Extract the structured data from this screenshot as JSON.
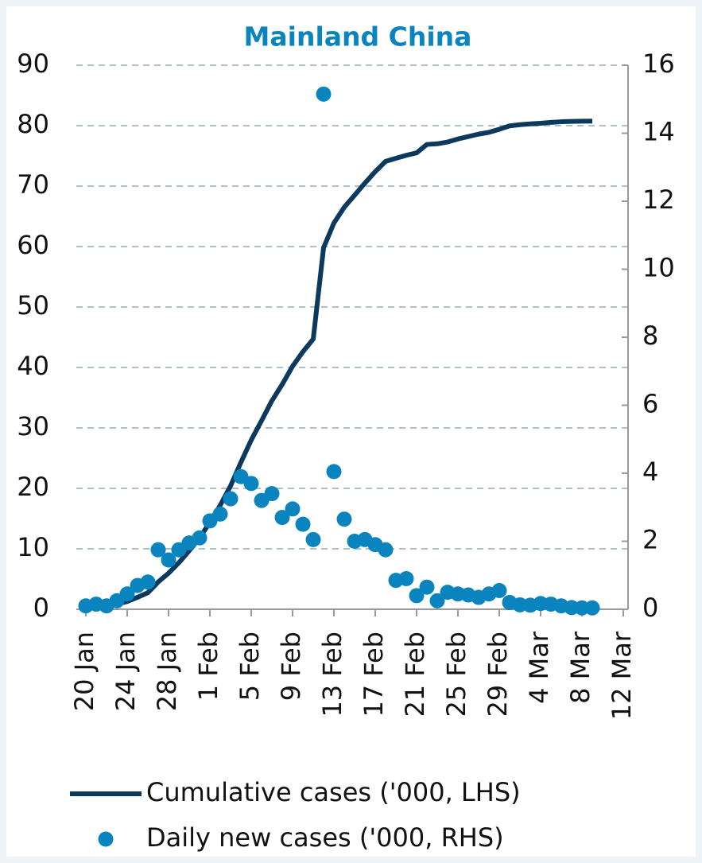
{
  "chart_data": {
    "type": "line",
    "title": "Mainland China",
    "categories": [
      "20 Jan",
      null,
      null,
      null,
      "24 Jan",
      null,
      null,
      null,
      "28 Jan",
      null,
      null,
      null,
      "1 Feb",
      null,
      null,
      null,
      "5 Feb",
      null,
      null,
      null,
      "9 Feb",
      null,
      null,
      null,
      "13 Feb",
      null,
      null,
      null,
      "17 Feb",
      null,
      null,
      null,
      "21 Feb",
      null,
      null,
      null,
      "25 Feb",
      null,
      null,
      null,
      "29 Feb",
      null,
      null,
      null,
      "4 Mar",
      null,
      null,
      null,
      "8 Mar",
      null,
      null,
      null,
      "12 Mar"
    ],
    "series": [
      {
        "name": "Cumulative cases ('000, LHS)",
        "color": "#0b3a5e",
        "values": [
          0.29,
          0.44,
          0.57,
          0.83,
          1.29,
          1.98,
          2.74,
          4.52,
          5.97,
          7.71,
          9.69,
          11.79,
          14.38,
          17.2,
          20.4,
          24.3,
          28.0,
          31.2,
          34.5,
          37.2,
          40.2,
          42.6,
          44.7,
          59.8,
          63.9,
          66.5,
          68.5,
          70.5,
          72.4,
          74.1,
          74.6,
          75.1,
          75.5,
          76.9,
          77.0,
          77.3,
          77.8,
          78.2,
          78.6,
          78.9,
          79.4,
          79.97,
          80.17,
          80.3,
          80.4,
          80.55,
          80.65,
          80.7,
          80.74,
          80.75,
          null,
          null,
          null
        ]
      },
      {
        "name": "Daily new cases ('000, RHS)",
        "color": "#0a84bf",
        "axis": "y2",
        "values": [
          0.1,
          0.15,
          0.1,
          0.25,
          0.45,
          0.7,
          0.8,
          1.75,
          1.45,
          1.75,
          1.95,
          2.1,
          2.6,
          2.8,
          3.25,
          3.9,
          3.7,
          3.2,
          3.4,
          2.7,
          2.95,
          2.5,
          2.05,
          15.15,
          4.05,
          2.65,
          2.0,
          2.05,
          1.9,
          1.75,
          0.85,
          0.9,
          0.4,
          0.65,
          0.25,
          0.5,
          0.45,
          0.42,
          0.35,
          0.45,
          0.55,
          0.2,
          0.13,
          0.12,
          0.17,
          0.15,
          0.1,
          0.05,
          0.04,
          0.04,
          null,
          null,
          null
        ]
      }
    ],
    "ylim": [
      0,
      90
    ],
    "yticks": [
      0,
      10,
      20,
      30,
      40,
      50,
      60,
      70,
      80,
      90
    ],
    "y2lim": [
      0,
      16
    ],
    "y2ticks": [
      0,
      2,
      4,
      6,
      8,
      10,
      12,
      14,
      16
    ],
    "grid": true
  }
}
